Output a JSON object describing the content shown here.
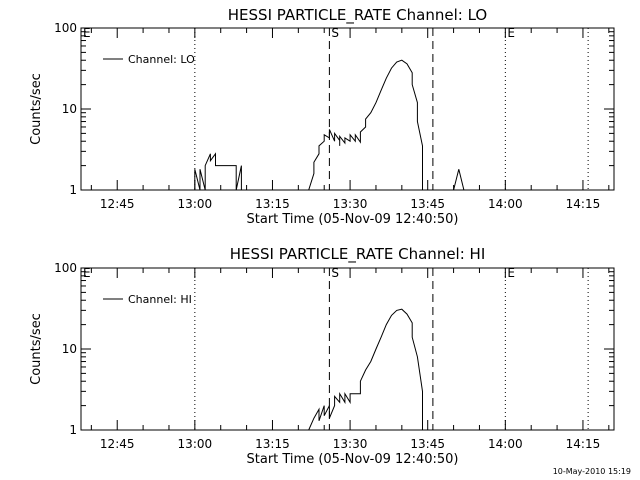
{
  "timestamp": "10-May-2010 15:19",
  "chart_data": [
    {
      "type": "line",
      "title": "HESSI PARTICLE_RATE Channel: LO",
      "xlabel": "Start Time (05-Nov-09 12:40:50)",
      "ylabel": "Counts/sec",
      "xlim": [
        "12:38",
        "14:21"
      ],
      "ylim": [
        1,
        100
      ],
      "yscale": "log",
      "xticks": [
        "12:45",
        "13:00",
        "13:15",
        "13:30",
        "13:45",
        "14:00",
        "14:15"
      ],
      "yticks": [
        "1",
        "10",
        "100"
      ],
      "legend": {
        "position": "top-left",
        "entries": [
          "Channel: LO"
        ]
      },
      "markers": [
        {
          "label": "E",
          "time": "12:38",
          "style": "dotted"
        },
        {
          "label": "",
          "time": "13:00",
          "style": "dotted"
        },
        {
          "label": "S",
          "time": "13:26",
          "style": "dashed"
        },
        {
          "label": "",
          "time": "13:46",
          "style": "dashed"
        },
        {
          "label": "E",
          "time": "14:00",
          "style": "dotted"
        },
        {
          "label": "",
          "time": "14:16",
          "style": "dotted"
        }
      ],
      "series": [
        {
          "name": "Channel: LO",
          "values": [
            [
              "13:00",
              1
            ],
            [
              "13:00",
              1.8
            ],
            [
              "13:01",
              1
            ],
            [
              "13:01",
              1.8
            ],
            [
              "13:02",
              1
            ],
            [
              "13:02",
              2
            ],
            [
              "13:03",
              2.8
            ],
            [
              "13:03",
              2.3
            ],
            [
              "13:04",
              2.8
            ],
            [
              "13:04",
              2
            ],
            [
              "13:05",
              2
            ],
            [
              "13:06",
              2
            ],
            [
              "13:07",
              2
            ],
            [
              "13:08",
              2
            ],
            [
              "13:08",
              1
            ],
            [
              "13:09",
              2
            ],
            [
              "13:09",
              1
            ],
            [
              "13:22",
              1
            ],
            [
              "13:23",
              1.6
            ],
            [
              "13:23",
              2.2
            ],
            [
              "13:24",
              2.8
            ],
            [
              "13:24",
              3.5
            ],
            [
              "13:25",
              4
            ],
            [
              "13:25",
              4.8
            ],
            [
              "13:26",
              4.4
            ],
            [
              "13:26",
              5.6
            ],
            [
              "13:27",
              4
            ],
            [
              "13:27",
              5
            ],
            [
              "13:28",
              4.1
            ],
            [
              "13:28",
              3.5
            ],
            [
              "13:28",
              4.6
            ],
            [
              "13:29",
              3.8
            ],
            [
              "13:29",
              4.4
            ],
            [
              "13:30",
              4
            ],
            [
              "13:30",
              4.8
            ],
            [
              "13:31",
              4
            ],
            [
              "13:31",
              4.8
            ],
            [
              "13:32",
              3.9
            ],
            [
              "13:32",
              5.2
            ],
            [
              "13:33",
              6
            ],
            [
              "13:33",
              7.5
            ],
            [
              "13:34",
              9
            ],
            [
              "13:35",
              12
            ],
            [
              "13:36",
              17
            ],
            [
              "13:37",
              24
            ],
            [
              "13:38",
              32
            ],
            [
              "13:39",
              38
            ],
            [
              "13:40",
              40
            ],
            [
              "13:41",
              36
            ],
            [
              "13:42",
              28
            ],
            [
              "13:42",
              20
            ],
            [
              "13:43",
              12
            ],
            [
              "13:43",
              7
            ],
            [
              "13:44",
              3.5
            ],
            [
              "13:44",
              1
            ],
            [
              "13:50",
              1
            ],
            [
              "13:51",
              1.8
            ],
            [
              "13:52",
              1
            ]
          ]
        }
      ]
    },
    {
      "type": "line",
      "title": "HESSI PARTICLE_RATE Channel: HI",
      "xlabel": "Start Time (05-Nov-09 12:40:50)",
      "ylabel": "Counts/sec",
      "xlim": [
        "12:38",
        "14:21"
      ],
      "ylim": [
        1,
        100
      ],
      "yscale": "log",
      "xticks": [
        "12:45",
        "13:00",
        "13:15",
        "13:30",
        "13:45",
        "14:00",
        "14:15"
      ],
      "yticks": [
        "1",
        "10",
        "100"
      ],
      "legend": {
        "position": "top-left",
        "entries": [
          "Channel: HI"
        ]
      },
      "markers": [
        {
          "label": "E",
          "time": "12:38",
          "style": "dotted"
        },
        {
          "label": "",
          "time": "13:00",
          "style": "dotted"
        },
        {
          "label": "S",
          "time": "13:26",
          "style": "dashed"
        },
        {
          "label": "",
          "time": "13:46",
          "style": "dashed"
        },
        {
          "label": "E",
          "time": "14:00",
          "style": "dotted"
        },
        {
          "label": "",
          "time": "14:16",
          "style": "dotted"
        }
      ],
      "series": [
        {
          "name": "Channel: HI",
          "values": [
            [
              "13:22",
              1
            ],
            [
              "13:23",
              1.4
            ],
            [
              "13:24",
              1.8
            ],
            [
              "13:24",
              1.3
            ],
            [
              "13:25",
              2
            ],
            [
              "13:25",
              1.5
            ],
            [
              "13:26",
              2
            ],
            [
              "13:26",
              1.4
            ],
            [
              "13:27",
              2
            ],
            [
              "13:27",
              2.6
            ],
            [
              "13:28",
              2.2
            ],
            [
              "13:28",
              2.8
            ],
            [
              "13:29",
              2.2
            ],
            [
              "13:29",
              2.8
            ],
            [
              "13:30",
              2.2
            ],
            [
              "13:30",
              2.8
            ],
            [
              "13:31",
              2.8
            ],
            [
              "13:32",
              2.8
            ],
            [
              "13:32",
              4
            ],
            [
              "13:33",
              5.5
            ],
            [
              "13:34",
              7
            ],
            [
              "13:35",
              10
            ],
            [
              "13:36",
              14
            ],
            [
              "13:37",
              20
            ],
            [
              "13:38",
              26
            ],
            [
              "13:39",
              30
            ],
            [
              "13:40",
              31
            ],
            [
              "13:41",
              27
            ],
            [
              "13:42",
              21
            ],
            [
              "13:42",
              14
            ],
            [
              "13:43",
              8
            ],
            [
              "13:44",
              3
            ],
            [
              "13:44",
              1
            ]
          ]
        }
      ]
    }
  ]
}
